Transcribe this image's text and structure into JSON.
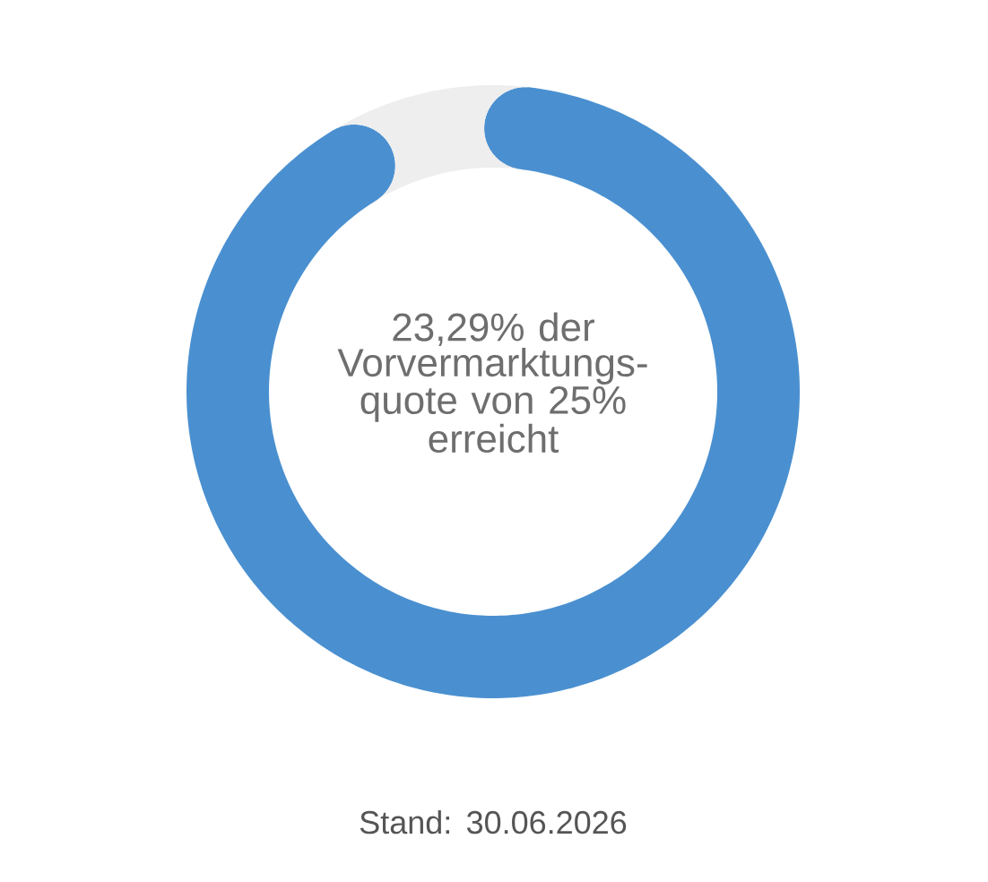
{
  "chart_data": {
    "type": "donut",
    "categories": [
      null,
      null
    ],
    "values": [
      93.16,
      6.84
    ],
    "colors": [
      "#4a90d0",
      "#eeeeee"
    ],
    "annotations": [
      "23,29% der Vorvermarktungs-quote von 25% erreicht",
      "Stand: 30.06.2026"
    ]
  }
}
